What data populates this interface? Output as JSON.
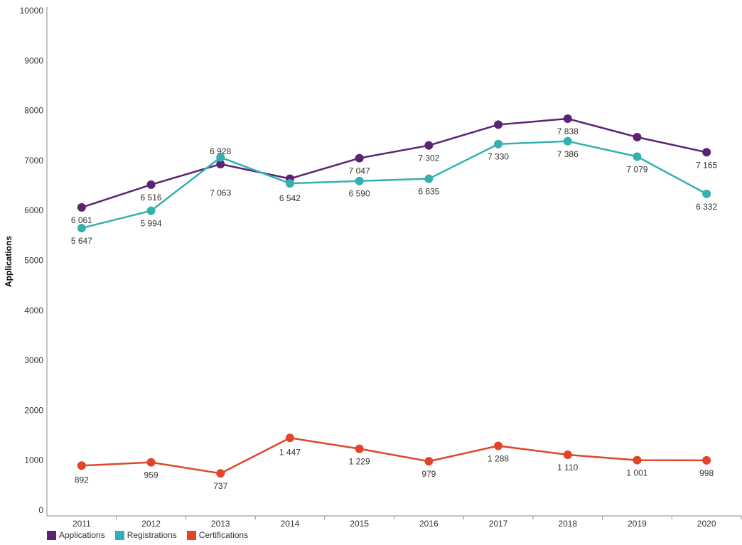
{
  "chart_data": {
    "type": "line",
    "ylabel": "Applications",
    "xlabel": "",
    "ylim": [
      0,
      10000
    ],
    "yticks": [
      "0",
      "1000",
      "2000",
      "3000",
      "4000",
      "5000",
      "6000",
      "7000",
      "8000",
      "9000",
      "10000"
    ],
    "categories": [
      "2011",
      "2012",
      "2013",
      "2014",
      "2015",
      "2016",
      "2017",
      "2018",
      "2019",
      "2020"
    ],
    "legend_position": "bottom-left",
    "grid": false,
    "series": [
      {
        "name": "Applications",
        "color": "#5b2372",
        "values": [
          6061,
          6516,
          6928,
          6636,
          7047,
          7302,
          7718,
          7838,
          7468,
          7165
        ],
        "labels": [
          "6 061",
          "6 516",
          "6 928",
          "",
          "7 047",
          "7 302",
          "",
          "7 838",
          "",
          "7 165"
        ]
      },
      {
        "name": "Registrations",
        "color": "#35b0b1",
        "values": [
          5647,
          5994,
          7063,
          6542,
          6590,
          6635,
          7330,
          7386,
          7079,
          6332
        ],
        "labels": [
          "5 647",
          "5 994",
          "7 063",
          "6 542",
          "6 590",
          "6 635",
          "7 330",
          "7 386",
          "7 079",
          "6 332"
        ]
      },
      {
        "name": "Certifications",
        "color": "#e0452a",
        "values": [
          892,
          959,
          737,
          1447,
          1229,
          979,
          1288,
          1110,
          1001,
          998
        ],
        "labels": [
          "892",
          "959",
          "737",
          "1 447",
          "1 229",
          "979",
          "1 288",
          "1 110",
          "1 001",
          "998"
        ]
      }
    ]
  }
}
